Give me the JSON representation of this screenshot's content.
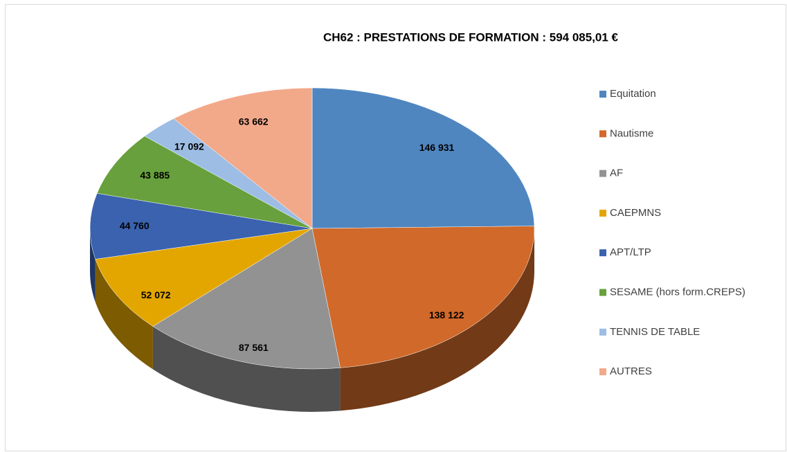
{
  "chart_data": {
    "type": "pie3d",
    "title": "CH62 : PRESTATIONS DE FORMATION : 594 085,01 €",
    "categories": [
      "Equitation",
      "Nautisme",
      "AF",
      "CAEPMNS",
      "APT/LTP",
      "SESAME (hors form.CREPS)",
      "TENNIS DE TABLE",
      "AUTRES"
    ],
    "values": [
      146931,
      138122,
      87561,
      52072,
      44760,
      43885,
      17092,
      63662
    ],
    "value_labels": [
      "146 931",
      "138 122",
      "87 561",
      "52 072",
      "44 760",
      "43 885",
      "17 092",
      "63 662"
    ],
    "colors": [
      "#4f86c0",
      "#d0692a",
      "#929292",
      "#e3a600",
      "#3a62ae",
      "#67a03c",
      "#9dbde4",
      "#f2a98a"
    ],
    "legend": "right"
  }
}
